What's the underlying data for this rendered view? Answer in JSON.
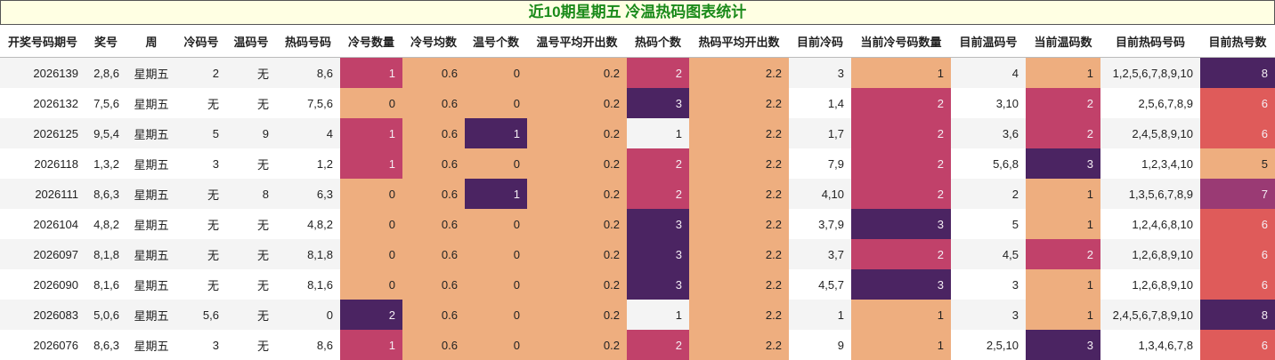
{
  "title": "近10期星期五 冷温热码图表统计",
  "table": {
    "header": [
      "开奖号码期号",
      "奖号",
      "周",
      "冷码号",
      "温码号",
      "热码号码",
      "冷号数量",
      "冷号均数",
      "温号个数",
      "温号平均开出数",
      "热码个数",
      "热码平均开出数",
      "目前冷码",
      "当前冷号码数量",
      "目前温码号",
      "当前温码数",
      "目前热码号码",
      "目前热号数"
    ],
    "rows": [
      [
        "2026139",
        "2,8,6",
        "星期五",
        "2",
        "无",
        "8,6",
        "1",
        "0.6",
        "0",
        "0.2",
        "2",
        "2.2",
        "3",
        "1",
        "4",
        "1",
        "1,2,5,6,7,8,9,10",
        "8"
      ],
      [
        "2026132",
        "7,5,6",
        "星期五",
        "无",
        "无",
        "7,5,6",
        "0",
        "0.6",
        "0",
        "0.2",
        "3",
        "2.2",
        "1,4",
        "2",
        "3,10",
        "2",
        "2,5,6,7,8,9",
        "6"
      ],
      [
        "2026125",
        "9,5,4",
        "星期五",
        "5",
        "9",
        "4",
        "1",
        "0.6",
        "1",
        "0.2",
        "1",
        "2.2",
        "1,7",
        "2",
        "3,6",
        "2",
        "2,4,5,8,9,10",
        "6"
      ],
      [
        "2026118",
        "1,3,2",
        "星期五",
        "3",
        "无",
        "1,2",
        "1",
        "0.6",
        "0",
        "0.2",
        "2",
        "2.2",
        "7,9",
        "2",
        "5,6,8",
        "3",
        "1,2,3,4,10",
        "5"
      ],
      [
        "2026111",
        "8,6,3",
        "星期五",
        "无",
        "8",
        "6,3",
        "0",
        "0.6",
        "1",
        "0.2",
        "2",
        "2.2",
        "4,10",
        "2",
        "2",
        "1",
        "1,3,5,6,7,8,9",
        "7"
      ],
      [
        "2026104",
        "4,8,2",
        "星期五",
        "无",
        "无",
        "4,8,2",
        "0",
        "0.6",
        "0",
        "0.2",
        "3",
        "2.2",
        "3,7,9",
        "3",
        "5",
        "1",
        "1,2,4,6,8,10",
        "6"
      ],
      [
        "2026097",
        "8,1,8",
        "星期五",
        "无",
        "无",
        "8,1,8",
        "0",
        "0.6",
        "0",
        "0.2",
        "3",
        "2.2",
        "3,7",
        "2",
        "4,5",
        "2",
        "1,2,6,8,9,10",
        "6"
      ],
      [
        "2026090",
        "8,1,6",
        "星期五",
        "无",
        "无",
        "8,1,6",
        "0",
        "0.6",
        "0",
        "0.2",
        "3",
        "2.2",
        "4,5,7",
        "3",
        "3",
        "1",
        "1,2,6,8,9,10",
        "6"
      ],
      [
        "2026083",
        "5,0,6",
        "星期五",
        "5,6",
        "无",
        "0",
        "2",
        "0.6",
        "0",
        "0.2",
        "1",
        "2.2",
        "1",
        "1",
        "3",
        "1",
        "2,4,5,6,7,8,9,10",
        "8"
      ],
      [
        "2026076",
        "8,6,3",
        "星期五",
        "3",
        "无",
        "8,6",
        "1",
        "0.6",
        "0",
        "0.2",
        "2",
        "2.2",
        "9",
        "1",
        "2,5,10",
        "3",
        "1,3,4,6,7,8",
        "6"
      ]
    ],
    "fills": [
      [
        null,
        null,
        null,
        null,
        null,
        null,
        "#c1416a",
        "#eeae7f",
        "#eeae7f",
        "#eeae7f",
        "#c1416a",
        "#eeae7f",
        null,
        "#eeae7f",
        null,
        "#eeae7f",
        null,
        "#4b2462"
      ],
      [
        null,
        null,
        null,
        null,
        null,
        null,
        "#eeae7f",
        "#eeae7f",
        "#eeae7f",
        "#eeae7f",
        "#4b2462",
        "#eeae7f",
        null,
        "#c1416a",
        null,
        "#c1416a",
        null,
        "#df5b5a"
      ],
      [
        null,
        null,
        null,
        null,
        null,
        null,
        "#c1416a",
        "#eeae7f",
        "#4b2462",
        "#eeae7f",
        null,
        "#eeae7f",
        null,
        "#c1416a",
        null,
        "#c1416a",
        null,
        "#df5b5a"
      ],
      [
        null,
        null,
        null,
        null,
        null,
        null,
        "#c1416a",
        "#eeae7f",
        "#eeae7f",
        "#eeae7f",
        "#c1416a",
        "#eeae7f",
        null,
        "#c1416a",
        null,
        "#4b2462",
        null,
        "#eeae7f"
      ],
      [
        null,
        null,
        null,
        null,
        null,
        null,
        "#eeae7f",
        "#eeae7f",
        "#4b2462",
        "#eeae7f",
        "#c1416a",
        "#eeae7f",
        null,
        "#c1416a",
        null,
        "#eeae7f",
        null,
        "#9a3a74"
      ],
      [
        null,
        null,
        null,
        null,
        null,
        null,
        "#eeae7f",
        "#eeae7f",
        "#eeae7f",
        "#eeae7f",
        "#4b2462",
        "#eeae7f",
        null,
        "#4b2462",
        null,
        "#eeae7f",
        null,
        "#df5b5a"
      ],
      [
        null,
        null,
        null,
        null,
        null,
        null,
        "#eeae7f",
        "#eeae7f",
        "#eeae7f",
        "#eeae7f",
        "#4b2462",
        "#eeae7f",
        null,
        "#c1416a",
        null,
        "#c1416a",
        null,
        "#df5b5a"
      ],
      [
        null,
        null,
        null,
        null,
        null,
        null,
        "#eeae7f",
        "#eeae7f",
        "#eeae7f",
        "#eeae7f",
        "#4b2462",
        "#eeae7f",
        null,
        "#4b2462",
        null,
        "#eeae7f",
        null,
        "#df5b5a"
      ],
      [
        null,
        null,
        null,
        null,
        null,
        null,
        "#4b2462",
        "#eeae7f",
        "#eeae7f",
        "#eeae7f",
        null,
        "#eeae7f",
        null,
        "#eeae7f",
        null,
        "#eeae7f",
        null,
        "#4b2462"
      ],
      [
        null,
        null,
        null,
        null,
        null,
        null,
        "#c1416a",
        "#eeae7f",
        "#eeae7f",
        "#eeae7f",
        "#c1416a",
        "#eeae7f",
        null,
        "#eeae7f",
        null,
        "#4b2462",
        null,
        "#df5b5a"
      ]
    ]
  }
}
